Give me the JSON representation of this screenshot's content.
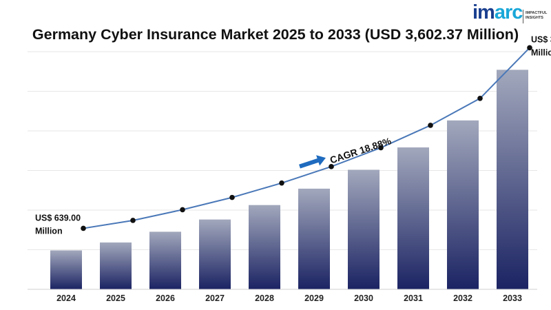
{
  "brand": {
    "name_part1": "im",
    "name_part2": "arc",
    "tagline_line1": "IMPACTFUL",
    "tagline_line2": "INSIGHTS"
  },
  "title": "Germany Cyber Insurance Market 2025 to 2033 (USD 3,602.37 Million)",
  "chart_data": {
    "type": "bar",
    "title": "Germany Cyber Insurance Market 2025 to 2033 (USD 3,602.37 Million)",
    "categories": [
      "2024",
      "2025",
      "2026",
      "2027",
      "2028",
      "2029",
      "2030",
      "2031",
      "2032",
      "2033"
    ],
    "series": [
      {
        "values": [
          639.0,
          769,
          945,
          1146,
          1383,
          1652,
          1962,
          2329,
          2772,
          3602.37
        ]
      }
    ],
    "trend_line": [
      639.0,
      769,
      945,
      1146,
      1383,
      1652,
      1962,
      2329,
      2772,
      3602.37
    ],
    "ylim": [
      0,
      3900
    ],
    "grid": true,
    "colors": {
      "bar_top": "#a2a8bc",
      "bar_bottom": "#1b2363",
      "line": "#4a78b8",
      "arrow": "#1f6bbf"
    },
    "annotations": {
      "start_line1": "US$ 639.00",
      "start_line2": "Million",
      "end_line1": "US$ 3,602.37",
      "end_line2": "Million",
      "cagr": "CAGR 18.88%"
    }
  }
}
